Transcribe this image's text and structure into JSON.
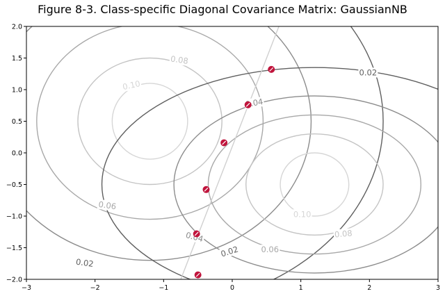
{
  "chart_data": {
    "type": "contour",
    "title": "Figure 8-3. Class-specific Diagonal Covariance Matrix: GaussianNB",
    "xlabel": "",
    "ylabel": "",
    "xlim": [
      -3,
      3
    ],
    "ylim": [
      -2,
      2
    ],
    "xticks": [
      -3,
      -2,
      -1,
      0,
      1,
      2,
      3
    ],
    "yticks": [
      -2.0,
      -1.5,
      -1.0,
      -0.5,
      0.0,
      0.5,
      1.0,
      1.5,
      2.0
    ],
    "grid": false,
    "legend": "none",
    "contour_levels": [
      0.02,
      0.04,
      0.06,
      0.08,
      0.1
    ],
    "level_colors": {
      "0.02": "#5f5f5f",
      "0.04": "#8c8c8c",
      "0.06": "#a8a8a8",
      "0.08": "#c4c4c4",
      "0.10": "#d6d6d6"
    },
    "classes": [
      {
        "center": [
          -1.2,
          0.5
        ],
        "contours": [
          {
            "level": 0.02,
            "rx": 3.4,
            "ry": 2.95
          },
          {
            "level": 0.04,
            "rx": 2.35,
            "ry": 2.2
          },
          {
            "level": 0.06,
            "rx": 1.65,
            "ry": 1.55
          },
          {
            "level": 0.08,
            "rx": 1.05,
            "ry": 1.0
          },
          {
            "level": 0.1,
            "rx": 0.55,
            "ry": 0.6
          }
        ]
      },
      {
        "center": [
          1.2,
          -0.5
        ],
        "contours": [
          {
            "level": 0.02,
            "rx": 3.1,
            "ry": 1.85
          },
          {
            "level": 0.04,
            "rx": 2.05,
            "ry": 1.4
          },
          {
            "level": 0.06,
            "rx": 1.55,
            "ry": 1.1
          },
          {
            "level": 0.08,
            "rx": 1.0,
            "ry": 0.8
          },
          {
            "level": 0.1,
            "rx": 0.5,
            "ry": 0.5
          }
        ]
      }
    ],
    "boundary_line": [
      [
        -0.75,
        -2.0
      ],
      [
        0.68,
        2.0
      ]
    ],
    "points": [
      {
        "x": 0.57,
        "y": 1.32
      },
      {
        "x": 0.23,
        "y": 0.76
      },
      {
        "x": -0.12,
        "y": 0.16
      },
      {
        "x": -0.38,
        "y": -0.58
      },
      {
        "x": -0.52,
        "y": -1.28
      },
      {
        "x": -0.5,
        "y": -1.93
      }
    ],
    "point_color": "#c0143c",
    "contour_labels": [
      {
        "text": "0.02",
        "x": 1.98,
        "y": 1.27,
        "color": "#5f5f5f",
        "rot": 0
      },
      {
        "text": "0.02",
        "x": -2.15,
        "y": -1.74,
        "color": "#5f5f5f",
        "rot": 8
      },
      {
        "text": "0.02",
        "x": -0.04,
        "y": -1.56,
        "color": "#5f5f5f",
        "rot": -18
      },
      {
        "text": "0.04",
        "x": 0.32,
        "y": 0.79,
        "color": "#8c8c8c",
        "rot": -10
      },
      {
        "text": "0.04",
        "x": -0.55,
        "y": -1.33,
        "color": "#8c8c8c",
        "rot": 15
      },
      {
        "text": "0.06",
        "x": -1.82,
        "y": -0.83,
        "color": "#a8a8a8",
        "rot": 8
      },
      {
        "text": "0.06",
        "x": 0.55,
        "y": -1.53,
        "color": "#a8a8a8",
        "rot": 0
      },
      {
        "text": "0.08",
        "x": -0.77,
        "y": 1.47,
        "color": "#c4c4c4",
        "rot": 8
      },
      {
        "text": "0.08",
        "x": 1.62,
        "y": -1.28,
        "color": "#c4c4c4",
        "rot": -5
      },
      {
        "text": "0.10",
        "x": -1.47,
        "y": 1.07,
        "color": "#d6d6d6",
        "rot": -12
      },
      {
        "text": "0.10",
        "x": 1.02,
        "y": -0.97,
        "color": "#d6d6d6",
        "rot": 0
      }
    ]
  }
}
